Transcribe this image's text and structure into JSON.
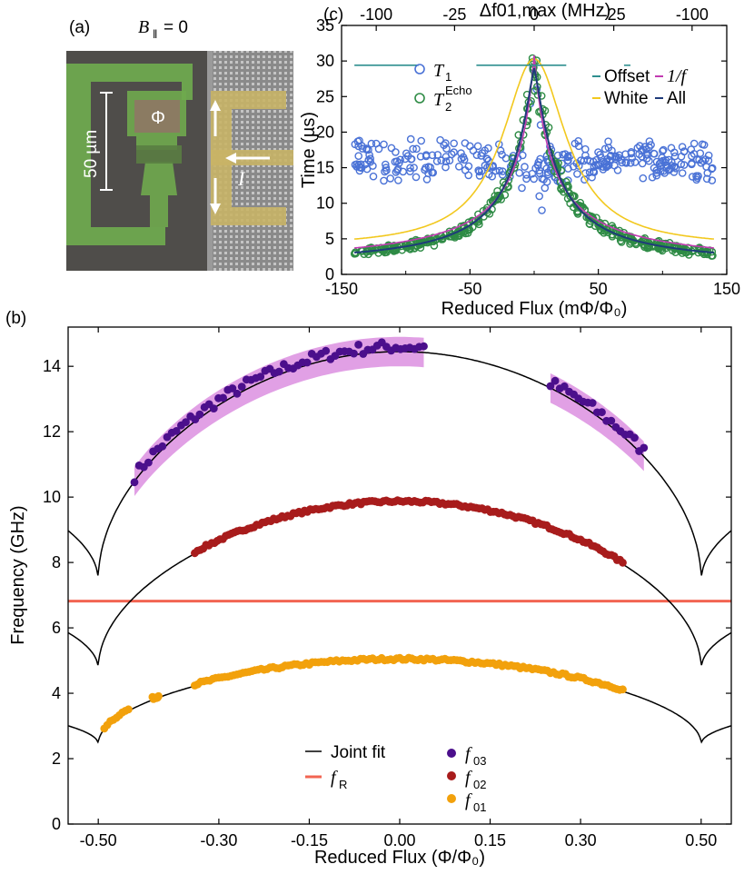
{
  "panel_a": {
    "label": "(a)",
    "field_label": "B",
    "field_sub": "‖",
    "field_value": "= 0",
    "scale_label": "50 µm",
    "flux_label": "Φ",
    "current_label": "I"
  },
  "chart_data": [
    {
      "id": "c",
      "type": "scatter",
      "panel_label": "(c)",
      "xlabel": "Reduced Flux (mΦ/Φ₀)",
      "ylabel": "Time (µs)",
      "top_xlabel": "Δf01,max (MHz)",
      "xlim": [
        -150,
        150
      ],
      "ylim": [
        0,
        35
      ],
      "xticks": [
        -150,
        -50,
        50,
        150
      ],
      "yticks": [
        0,
        5,
        10,
        15,
        20,
        25,
        30,
        35
      ],
      "top_ticks": [
        {
          "label": "-100",
          "x": -123
        },
        {
          "label": "-25",
          "x": -62
        },
        {
          "label": "0",
          "x": 0
        },
        {
          "label": "-25",
          "x": 62
        },
        {
          "label": "-100",
          "x": 123
        }
      ],
      "colors": {
        "T1": "#4a72d6",
        "T2": "#2e8b45",
        "offset": "#2f8f8f",
        "oneoverf": "#c23bb2",
        "white": "#f2c81e",
        "all": "#1f3b7a"
      },
      "legend": {
        "t1": "T",
        "t1_sub": "1",
        "t2": "T",
        "t2_sub": "2",
        "t2_sup": "Echo",
        "offset": "Offset",
        "oneoverf": "1/f",
        "white": "White",
        "all": "All"
      },
      "t1_band": {
        "center": 16,
        "spread": 2.5,
        "center_near_zero": 15
      },
      "t1_outliers": [
        [
          -1,
          29
        ],
        [
          2,
          26
        ],
        [
          -3,
          24
        ],
        [
          5,
          21
        ],
        [
          4,
          11
        ],
        [
          6,
          9
        ],
        [
          -6,
          14
        ],
        [
          10,
          13
        ]
      ],
      "t2_peak": 29,
      "offset_level": 29.4,
      "offset_segments": [
        [
          -140,
          -90
        ],
        [
          -45,
          25
        ],
        [
          70,
          75
        ]
      ]
    },
    {
      "id": "b",
      "type": "scatter",
      "panel_label": "(b)",
      "xlabel": "Reduced Flux (Φ/Φ₀)",
      "ylabel": "Frequency (GHz)",
      "xlim": [
        -0.55,
        0.55
      ],
      "ylim": [
        0,
        15.2
      ],
      "xticks": [
        "-0.50",
        "-0.30",
        "-0.15",
        "0.00",
        "0.15",
        "0.30",
        "0.50"
      ],
      "xtick_values": [
        -0.5,
        -0.3,
        -0.15,
        0,
        0.15,
        0.3,
        0.5
      ],
      "yticks": [
        0,
        2,
        4,
        6,
        8,
        10,
        12,
        14
      ],
      "fR": 6.82,
      "colors": {
        "f03": "#4b0f8c",
        "f02": "#a81c1c",
        "f01": "#f2a10c",
        "fR": "#f26452",
        "band": "#dc8fe0",
        "fit": "#000000"
      },
      "model": {
        "f01": {
          "max": 5.0,
          "min": 2.45
        },
        "f02": {
          "max": 9.82,
          "min": 4.75
        },
        "f03": {
          "max": 14.45,
          "min": 7.45
        }
      },
      "series_ranges": {
        "f03": [
          [
            -0.44,
            0.04
          ],
          [
            0.25,
            0.405
          ]
        ],
        "f02": [
          [
            -0.34,
            0.37
          ]
        ],
        "f01": [
          [
            -0.49,
            -0.45
          ],
          [
            -0.41,
            -0.4
          ],
          [
            -0.34,
            0.37
          ]
        ]
      },
      "legend": {
        "fit": "Joint fit",
        "fR": "f",
        "fR_sub": "R",
        "f03": "f",
        "f03_sub": "03",
        "f02": "f",
        "f02_sub": "02",
        "f01": "f",
        "f01_sub": "01"
      }
    }
  ]
}
